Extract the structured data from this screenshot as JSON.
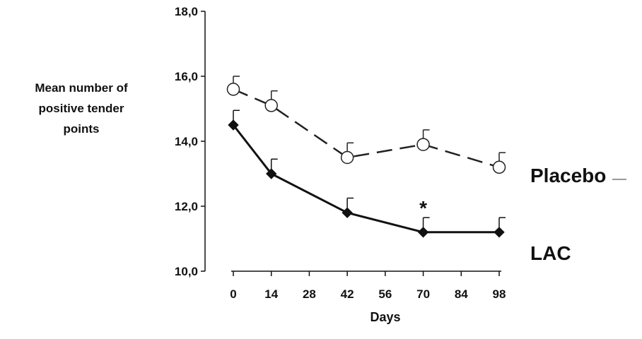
{
  "chart_data": {
    "type": "line",
    "ylabel": [
      "Mean number of",
      "positive tender",
      "points"
    ],
    "xlabel": "Days",
    "x": [
      0,
      14,
      42,
      70,
      98
    ],
    "xticks": [
      0,
      14,
      28,
      42,
      56,
      70,
      84,
      98
    ],
    "xtick_labels": [
      "0",
      "14",
      "28",
      "42",
      "56",
      "70",
      "84",
      "98"
    ],
    "xlim": [
      -5,
      100
    ],
    "yticks": [
      10,
      12,
      14,
      16,
      18
    ],
    "ytick_labels": [
      "10,0",
      "12,0",
      "14,0",
      "16,0",
      "18,0"
    ],
    "ylim": [
      10,
      18
    ],
    "grid": false,
    "series": [
      {
        "name": "Placebo",
        "values": [
          15.6,
          15.1,
          13.5,
          13.9,
          13.2
        ],
        "error_upper": [
          0.4,
          0.45,
          0.45,
          0.45,
          0.45
        ],
        "line_style": "dashed",
        "marker": "open-circle",
        "color": "#222222"
      },
      {
        "name": "LAC",
        "values": [
          14.5,
          13.0,
          11.8,
          11.2,
          11.2
        ],
        "error_upper": [
          0.45,
          0.45,
          0.45,
          0.45,
          0.45
        ],
        "line_style": "solid",
        "marker": "filled-diamond",
        "color": "#111111"
      }
    ],
    "annotations": [
      {
        "text": "*",
        "x": 70,
        "y": 12.0
      }
    ]
  }
}
